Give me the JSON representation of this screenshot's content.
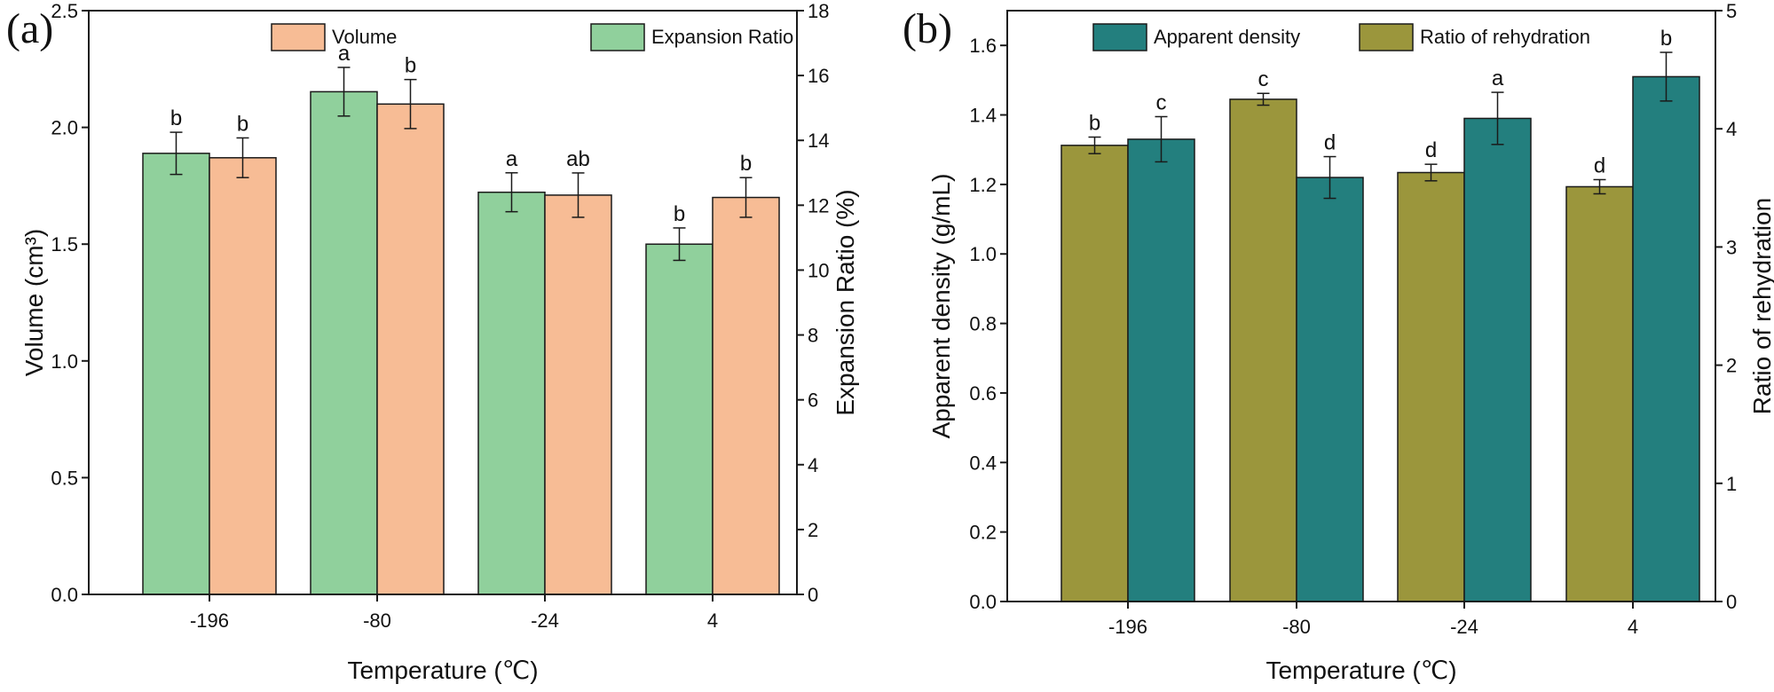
{
  "chart_data": [
    {
      "panel_label": "(a)",
      "type": "bar",
      "categories": [
        "-196",
        "-80",
        "-24",
        "4"
      ],
      "xlabel": "Temperature (℃)",
      "ylabel_left": "Volume (cm³)",
      "ylabel_right": "Expansion Ratio (%)",
      "ylim_left": [
        0,
        2.5
      ],
      "yticks_left": [
        "0.0",
        "0.5",
        "1.0",
        "1.5",
        "2.0",
        "2.5"
      ],
      "ylim_right": [
        0,
        18
      ],
      "yticks_right": [
        "0",
        "2",
        "4",
        "6",
        "8",
        "10",
        "12",
        "14",
        "16",
        "18"
      ],
      "legend_order": [
        "Volume",
        "Expansion Ratio"
      ],
      "series": [
        {
          "name": "Expansion Ratio",
          "axis": "right",
          "color": "#90D09C",
          "values": [
            13.6,
            15.5,
            12.4,
            10.8
          ],
          "errors": [
            0.65,
            0.75,
            0.6,
            0.5
          ],
          "letters": [
            "b",
            "a",
            "a",
            "b"
          ]
        },
        {
          "name": "Volume",
          "axis": "left",
          "color": "#F7BC95",
          "values": [
            1.87,
            2.1,
            1.71,
            1.7
          ],
          "errors": [
            0.085,
            0.105,
            0.095,
            0.085
          ],
          "letters": [
            "b",
            "b",
            "ab",
            "b"
          ]
        }
      ]
    },
    {
      "panel_label": "(b)",
      "type": "bar",
      "categories": [
        "-196",
        "-80",
        "-24",
        "4"
      ],
      "xlabel": "Temperature (℃)",
      "ylabel_left": "Apparent density (g/mL)",
      "ylabel_right": "Ratio of rehydration",
      "ylim_left": [
        0,
        1.7
      ],
      "yticks_left": [
        "0.0",
        "0.2",
        "0.4",
        "0.6",
        "0.8",
        "1.0",
        "1.2",
        "1.4",
        "1.6"
      ],
      "ylim_right": [
        0,
        5
      ],
      "yticks_right": [
        "0",
        "1",
        "2",
        "3",
        "4",
        "5"
      ],
      "legend_order": [
        "Apparent density",
        "Ratio of rehydration"
      ],
      "series": [
        {
          "name": "Ratio of rehydration",
          "axis": "right",
          "color": "#9B963C",
          "values": [
            3.86,
            4.25,
            3.63,
            3.51
          ],
          "errors": [
            0.07,
            0.05,
            0.07,
            0.06
          ],
          "letters": [
            "b",
            "c",
            "d",
            "d"
          ]
        },
        {
          "name": "Apparent density",
          "axis": "left",
          "color": "#237F7E",
          "values": [
            1.33,
            1.22,
            1.39,
            1.51
          ],
          "errors": [
            0.065,
            0.06,
            0.075,
            0.07
          ],
          "letters": [
            "c",
            "d",
            "a",
            "b"
          ]
        }
      ]
    }
  ]
}
